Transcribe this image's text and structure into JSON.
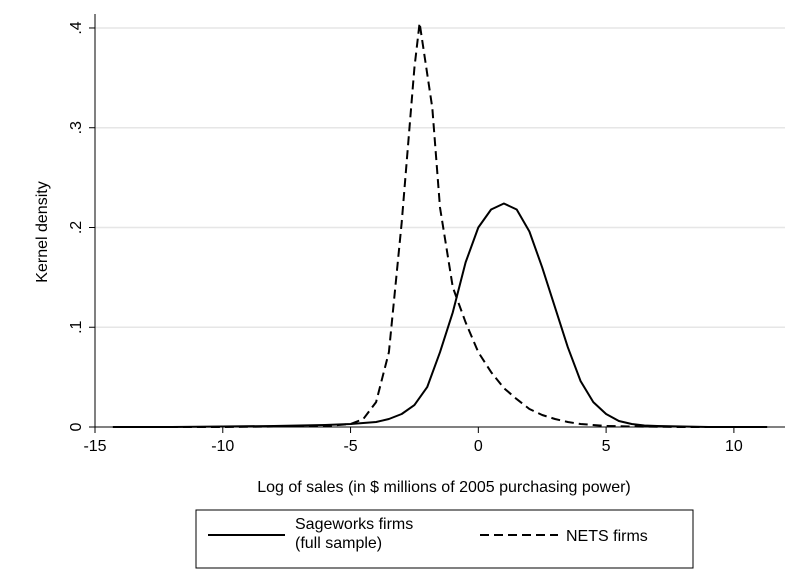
{
  "chart_data": {
    "type": "line",
    "title": "",
    "xlabel": "Log of sales (in $ millions of 2005 purchasing power)",
    "ylabel": "Kernel density",
    "xlim": [
      -15,
      12
    ],
    "ylim": [
      0,
      0.41
    ],
    "xticks": [
      -15,
      -10,
      -5,
      0,
      5,
      10
    ],
    "xtick_labels": [
      "-15",
      "-10",
      "-5",
      "0",
      "5",
      "10"
    ],
    "yticks": [
      0,
      0.1,
      0.2,
      0.3,
      0.4
    ],
    "ytick_labels": [
      "0",
      ".1",
      ".2",
      ".3",
      ".4"
    ],
    "grid": "horizontal",
    "legend_position": "bottom",
    "legend": {
      "sageworks_line1": "Sageworks firms",
      "sageworks_line2": "(full sample)",
      "nets": "NETS firms"
    },
    "series": [
      {
        "key": "sageworks",
        "style": "solid",
        "x": [
          -14.3,
          -12,
          -10,
          -8,
          -7,
          -6,
          -5,
          -4.5,
          -4,
          -3.5,
          -3,
          -2.5,
          -2,
          -1.5,
          -1,
          -0.5,
          0,
          0.5,
          1,
          1.5,
          2,
          2.5,
          3,
          3.5,
          4,
          4.5,
          5,
          5.5,
          6,
          6.5,
          7,
          8,
          9,
          10,
          11.3
        ],
        "y": [
          0.0,
          0.0,
          0.0005,
          0.001,
          0.0015,
          0.002,
          0.003,
          0.004,
          0.005,
          0.008,
          0.013,
          0.022,
          0.04,
          0.075,
          0.115,
          0.165,
          0.2,
          0.218,
          0.224,
          0.218,
          0.196,
          0.16,
          0.12,
          0.08,
          0.046,
          0.025,
          0.013,
          0.006,
          0.003,
          0.0015,
          0.001,
          0.0005,
          0.0,
          0.0,
          0.0
        ]
      },
      {
        "key": "nets",
        "style": "dash",
        "x": [
          -14.3,
          -12,
          -10,
          -8,
          -6,
          -5,
          -4.5,
          -4,
          -3.5,
          -3,
          -2.5,
          -2.3,
          -1.8,
          -1.5,
          -1,
          -0.5,
          0,
          0.5,
          1,
          1.5,
          2,
          2.5,
          3,
          3.5,
          4,
          5,
          6,
          8,
          10,
          11.3
        ],
        "y": [
          0.0,
          0.0,
          0.0,
          0.0005,
          0.001,
          0.003,
          0.008,
          0.025,
          0.075,
          0.205,
          0.36,
          0.405,
          0.32,
          0.22,
          0.14,
          0.105,
          0.075,
          0.055,
          0.039,
          0.028,
          0.018,
          0.012,
          0.008,
          0.005,
          0.003,
          0.001,
          0.0005,
          0.0,
          0.0,
          0.0
        ]
      }
    ]
  }
}
